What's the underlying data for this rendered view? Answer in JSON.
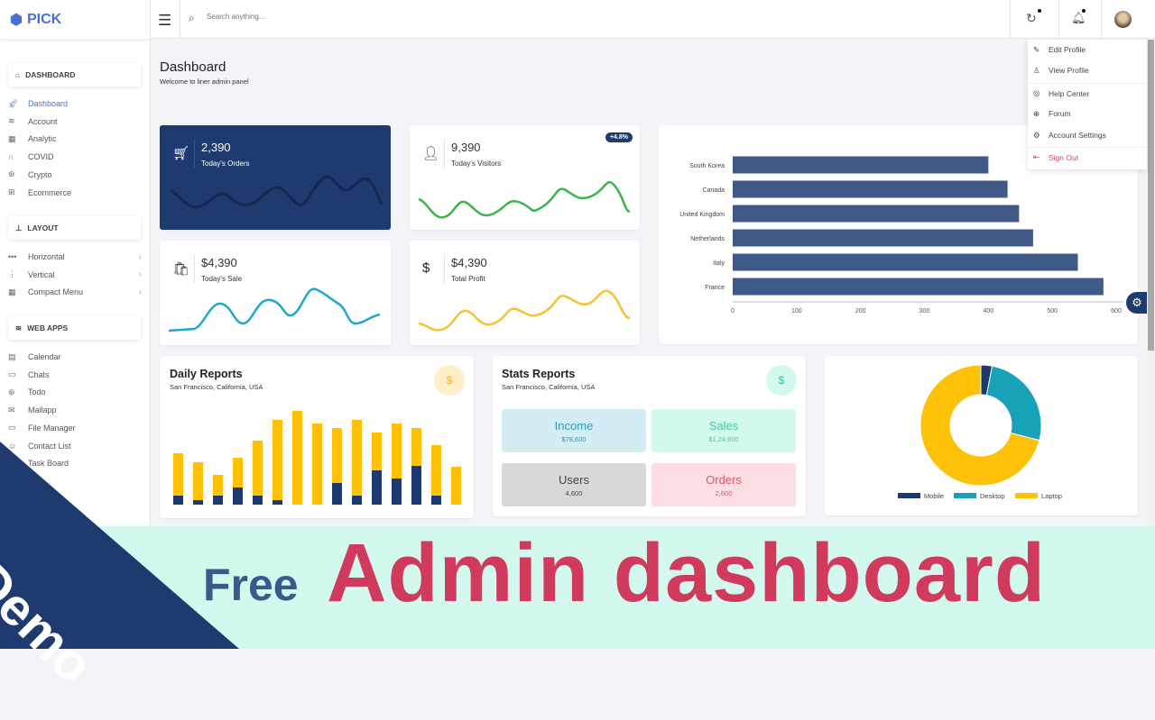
{
  "brand": {
    "name": "PICK"
  },
  "search": {
    "placeholder": "Search anything..."
  },
  "sidebar": {
    "sections": [
      {
        "label": "DASHBOARD",
        "icon": "home-icon",
        "items": [
          {
            "label": "Dashboard",
            "icon": "rocket-icon",
            "active": true
          },
          {
            "label": "Account",
            "icon": "layers-icon"
          },
          {
            "label": "Analytic",
            "icon": "grid-icon"
          },
          {
            "label": "COVID",
            "icon": "headphones-icon"
          },
          {
            "label": "Crypto",
            "icon": "aperture-icon"
          },
          {
            "label": "Ecommerce",
            "icon": "briefcase-icon"
          }
        ]
      },
      {
        "label": "LAYOUT",
        "icon": "sitemap-icon",
        "items": [
          {
            "label": "Horizontal",
            "icon": "dots-horizontal-icon"
          },
          {
            "label": "Vertical",
            "icon": "dots-vertical-icon"
          },
          {
            "label": "Compact Menu",
            "icon": "grid-icon"
          }
        ]
      },
      {
        "label": "WEB APPS",
        "icon": "layers-icon",
        "items": [
          {
            "label": "Calendar",
            "icon": "calendar-icon"
          },
          {
            "label": "Chats",
            "icon": "chat-icon"
          },
          {
            "label": "Todo",
            "icon": "aperture-icon"
          },
          {
            "label": "Mailapp",
            "icon": "mail-icon"
          },
          {
            "label": "File Manager",
            "icon": "folder-icon"
          },
          {
            "label": "Contact List",
            "icon": "contact-icon"
          },
          {
            "label": "Task Board",
            "icon": "board-icon"
          }
        ]
      }
    ]
  },
  "profile_menu": [
    {
      "label": "Edit Profile",
      "icon": "pencil-icon"
    },
    {
      "label": "View Profile",
      "icon": "user-icon"
    },
    {
      "label": "Help Center",
      "icon": "lifebuoy-icon"
    },
    {
      "label": "Forum",
      "icon": "globe-icon"
    },
    {
      "label": "Account Settings",
      "icon": "gear-icon"
    },
    {
      "label": "Sign Out",
      "icon": "sign-out-icon"
    }
  ],
  "page": {
    "title": "Dashboard",
    "subtitle": "Welcome to liner admin panel"
  },
  "cards": [
    {
      "value": "2,390",
      "label": "Today's Orders",
      "icon": "cart-icon"
    },
    {
      "value": "9,390",
      "label": "Today's Visitors",
      "icon": "user-icon",
      "badge": "+4.8%"
    },
    {
      "value": "$4,390",
      "label": "Today's Sale",
      "icon": "shopping-bag-icon"
    },
    {
      "value": "$4,390",
      "label": "Total Profit",
      "icon": "dollar-icon"
    }
  ],
  "chart_data": [
    {
      "type": "bar",
      "orientation": "horizontal",
      "categories": [
        "South Korea",
        "Canada",
        "United Kingdom",
        "Netherlands",
        "Italy",
        "France"
      ],
      "values": [
        400,
        430,
        448,
        470,
        540,
        580
      ],
      "xlim": [
        0,
        600
      ],
      "xticks": [
        0,
        100,
        200,
        300,
        400,
        500,
        600
      ],
      "color": "#3f5a86"
    },
    {
      "type": "bar",
      "stacked": true,
      "title": "Daily Reports",
      "subtitle": "San Francisco, California, USA",
      "series": [
        {
          "values": [
            10,
            5,
            10,
            19,
            10,
            5,
            0,
            0,
            24,
            10,
            38,
            29,
            43,
            10,
            0
          ],
          "color": "#1d3a6e"
        },
        {
          "values": [
            47,
            42,
            23,
            33,
            61,
            89,
            104,
            90,
            61,
            84,
            42,
            61,
            42,
            56,
            42
          ],
          "color": "#ffc107"
        }
      ]
    },
    {
      "type": "pie",
      "donut": true,
      "categories": [
        "Mobile",
        "Desktop",
        "Laptop"
      ],
      "values": [
        3,
        26,
        71
      ],
      "colors": [
        "#1d3a6e",
        "#17a2b8",
        "#ffc107"
      ],
      "legend": "bottom"
    }
  ],
  "stats": {
    "title": "Stats Reports",
    "subtitle": "San Francisco, California, USA",
    "items": [
      {
        "label": "Income",
        "value": "$78,600"
      },
      {
        "label": "Sales",
        "value": "$1,24,600"
      },
      {
        "label": "Users",
        "value": "4,600"
      },
      {
        "label": "Orders",
        "value": "2,600"
      }
    ]
  },
  "currency_symbol": "$",
  "banner": {
    "ribbon": "Demo",
    "free": "Free",
    "headline": "Admin dashboard"
  }
}
